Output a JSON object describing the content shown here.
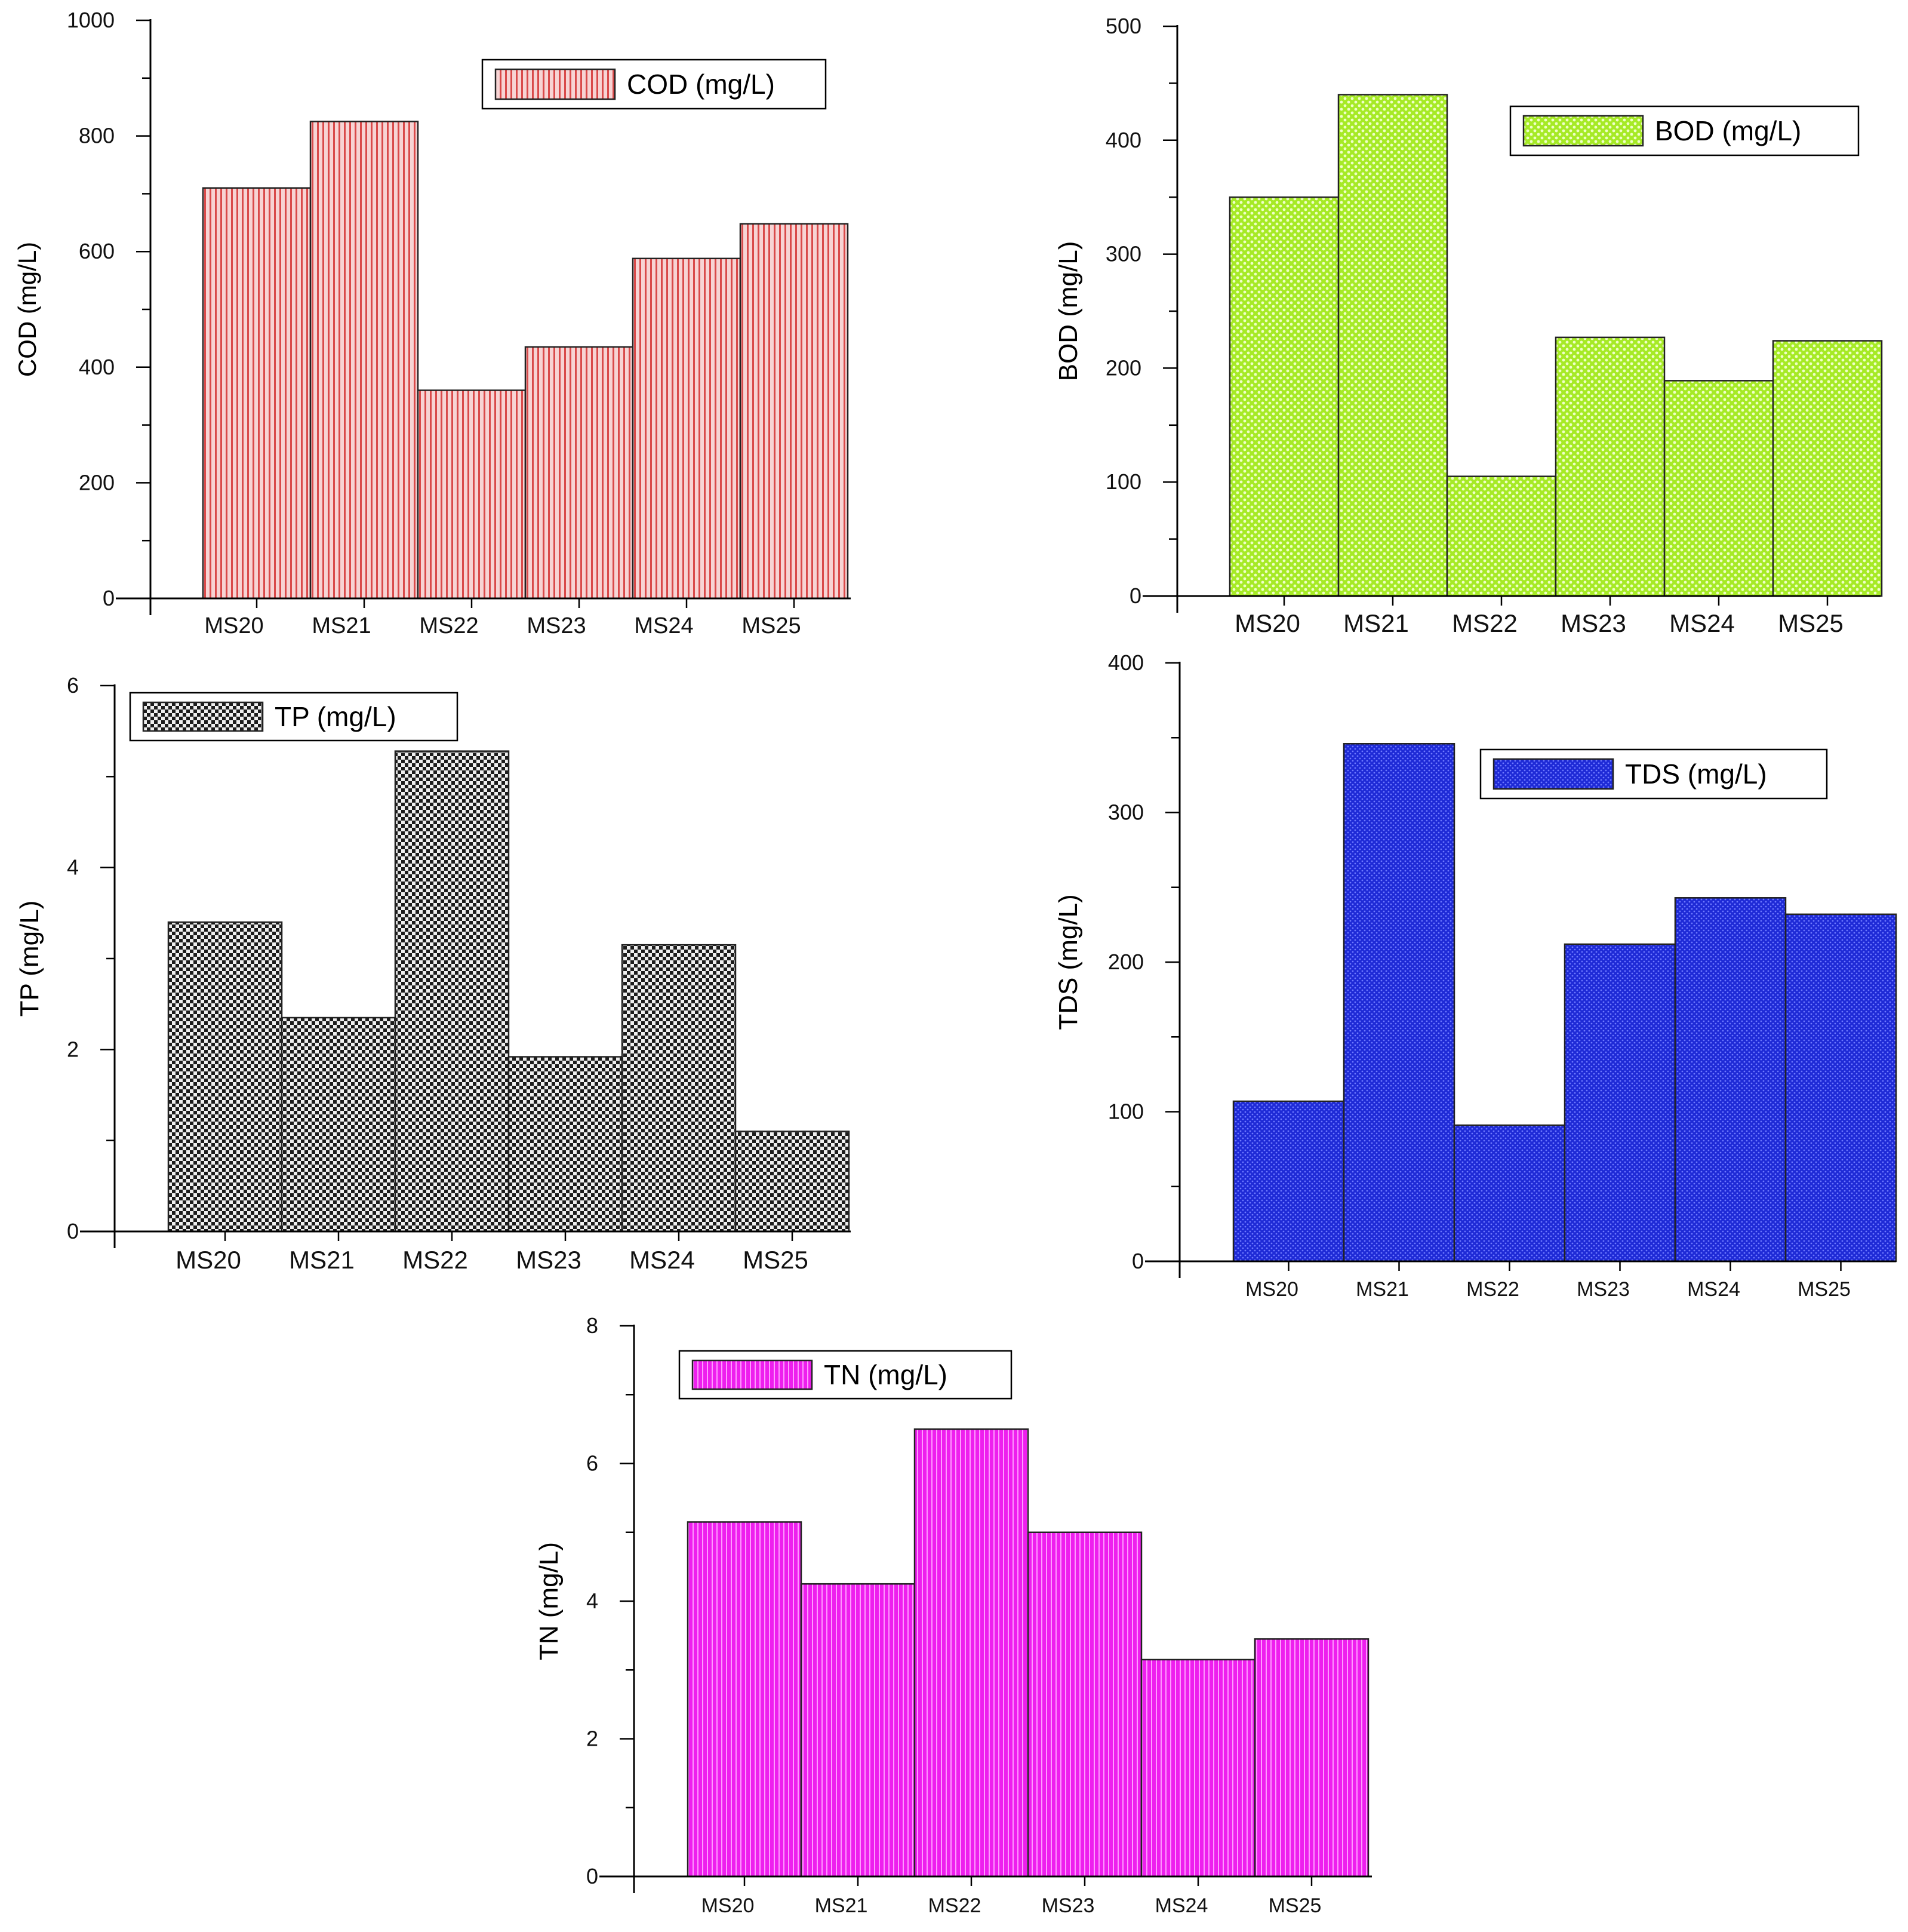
{
  "chart_data": [
    {
      "id": "cod",
      "type": "bar",
      "title": "",
      "xlabel": "",
      "ylabel": "COD (mg/L)",
      "ylim": [
        0,
        1000
      ],
      "yticks": [
        0,
        200,
        400,
        600,
        800,
        1000
      ],
      "categories": [
        "MS20",
        "MS21",
        "MS22",
        "MS23",
        "MS24",
        "MS25"
      ],
      "series": [
        {
          "name": "COD (mg/L)",
          "values": [
            710,
            825,
            360,
            435,
            588,
            648
          ]
        }
      ],
      "legend": "top-right",
      "color": "#f4c5c5",
      "pattern": "vertical-lines",
      "pattern_color": "#d94a4a",
      "grid": false
    },
    {
      "id": "bod",
      "type": "bar",
      "title": "",
      "xlabel": "",
      "ylabel": "BOD (mg/L)",
      "ylim": [
        0,
        500
      ],
      "yticks": [
        0,
        100,
        200,
        300,
        400,
        500
      ],
      "categories": [
        "MS20",
        "MS21",
        "MS22",
        "MS23",
        "MS24",
        "MS25"
      ],
      "series": [
        {
          "name": "BOD (mg/L)",
          "values": [
            350,
            440,
            105,
            227,
            189,
            224
          ]
        }
      ],
      "legend": "top-right",
      "color": "#b4f23c",
      "pattern": "dots",
      "pattern_color": "#e7ffb5",
      "grid": false
    },
    {
      "id": "tp",
      "type": "bar",
      "title": "",
      "xlabel": "",
      "ylabel": "TP (mg/L)",
      "ylim": [
        0,
        6
      ],
      "yticks": [
        0,
        2,
        4,
        6
      ],
      "categories": [
        "MS20",
        "MS21",
        "MS22",
        "MS23",
        "MS24",
        "MS25"
      ],
      "series": [
        {
          "name": "TP (mg/L)",
          "values": [
            3.4,
            2.35,
            5.28,
            1.92,
            3.15,
            1.1
          ]
        }
      ],
      "legend": "top-left",
      "color": "#2a2a2a",
      "pattern": "checker",
      "pattern_color": "#e6e6e6",
      "grid": false
    },
    {
      "id": "tds",
      "type": "bar",
      "title": "",
      "xlabel": "",
      "ylabel": "TDS (mg/L)",
      "ylim": [
        0,
        400
      ],
      "yticks": [
        0,
        100,
        200,
        300,
        400
      ],
      "categories": [
        "MS20",
        "MS21",
        "MS22",
        "MS23",
        "MS24",
        "MS25"
      ],
      "series": [
        {
          "name": "TDS (mg/L)",
          "values": [
            107,
            346,
            91,
            212,
            243,
            232
          ]
        }
      ],
      "legend": "top-right",
      "color": "#1c28d8",
      "pattern": "fine-dots",
      "pattern_color": "#5864ff",
      "grid": false
    },
    {
      "id": "tn",
      "type": "bar",
      "title": "",
      "xlabel": "",
      "ylabel": "TN (mg/L)",
      "ylim": [
        0,
        8
      ],
      "yticks": [
        0,
        2,
        4,
        6,
        8
      ],
      "categories": [
        "MS20",
        "MS21",
        "MS22",
        "MS23",
        "MS24",
        "MS25"
      ],
      "series": [
        {
          "name": "TN (mg/L)",
          "values": [
            5.15,
            4.25,
            6.5,
            5.0,
            3.15,
            3.45
          ]
        }
      ],
      "legend": "top-left",
      "color": "#ee22ee",
      "pattern": "vertical-lines",
      "pattern_color": "#ff8cff",
      "grid": false
    }
  ]
}
